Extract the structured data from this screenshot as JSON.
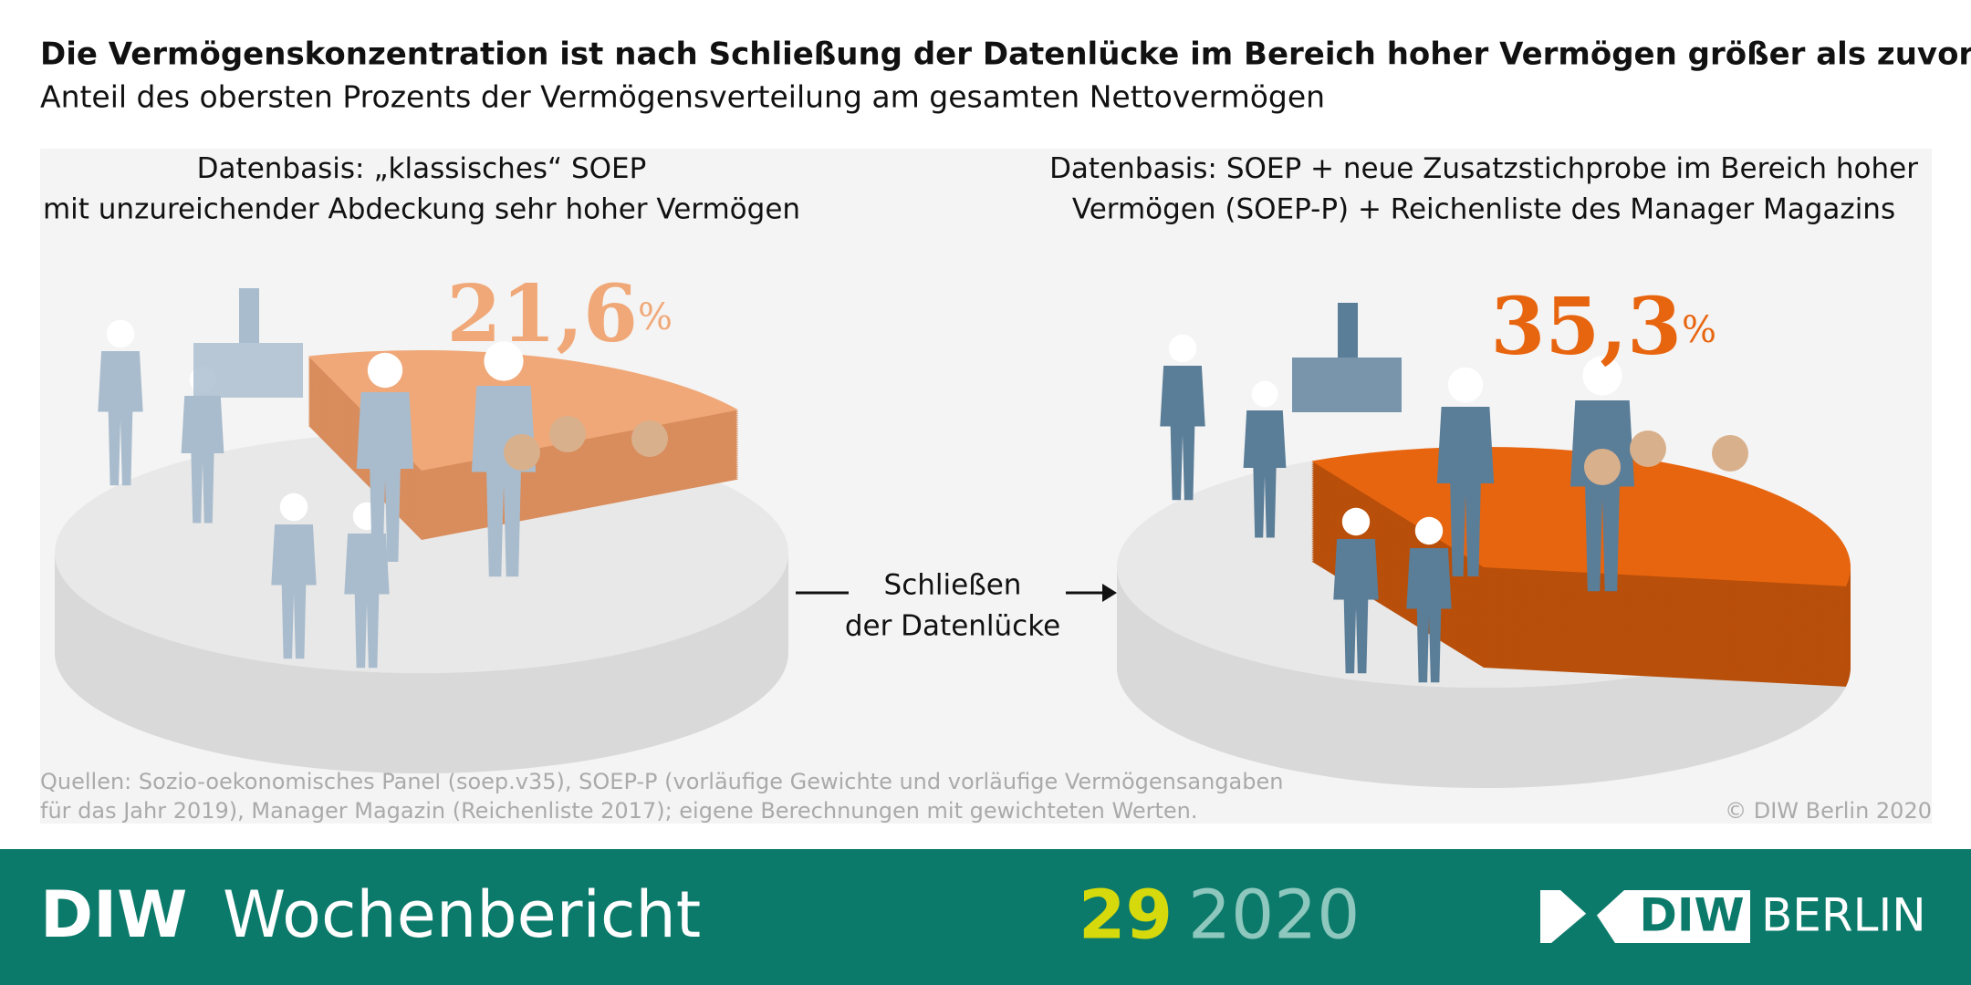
{
  "title": "Die Vermögenskonzentration ist nach Schließung der Datenlücke im Bereich hoher Vermögen größer als zuvor",
  "subtitle": "Anteil des obersten Prozents der Vermögensverteilung am gesamten Nettovermögen",
  "chart_data": [
    {
      "type": "pie",
      "title_lead": "Datenbasis:",
      "title_lines": [
        "„klassisches“ SOEP",
        "mit unzureichender Abdeckung sehr hoher Vermögen"
      ],
      "values": [
        21.6
      ],
      "value_labels": [
        "21,6%"
      ],
      "color": "#f0a878"
    },
    {
      "type": "pie",
      "title_lead": "Datenbasis:",
      "title_lines": [
        "SOEP + neue Zusatzstichprobe im Bereich hoher",
        "Vermögen (SOEP-P) + Reichenliste des Manager Magazins"
      ],
      "values": [
        35.3
      ],
      "value_labels": [
        "35,3%"
      ],
      "color": "#e8650f"
    }
  ],
  "annotation": [
    "Schließen",
    "der Datenlücke"
  ],
  "source": [
    "Quellen: Sozio-oekonomisches Panel (soep.v35), SOEP-P (vorläufige Gewichte und vorläufige Vermögensangaben",
    "für das Jahr 2019), Manager Magazin (Reichenliste 2017); eigene Berechnungen mit gewichteten Werten."
  ],
  "copyright": "© DIW Berlin 2020",
  "footer": {
    "brand_bold": "DIW",
    "brand": "Wochenbericht",
    "issue": "29",
    "year": "2020",
    "logo": "DIW",
    "logo_city": "BERLIN"
  }
}
